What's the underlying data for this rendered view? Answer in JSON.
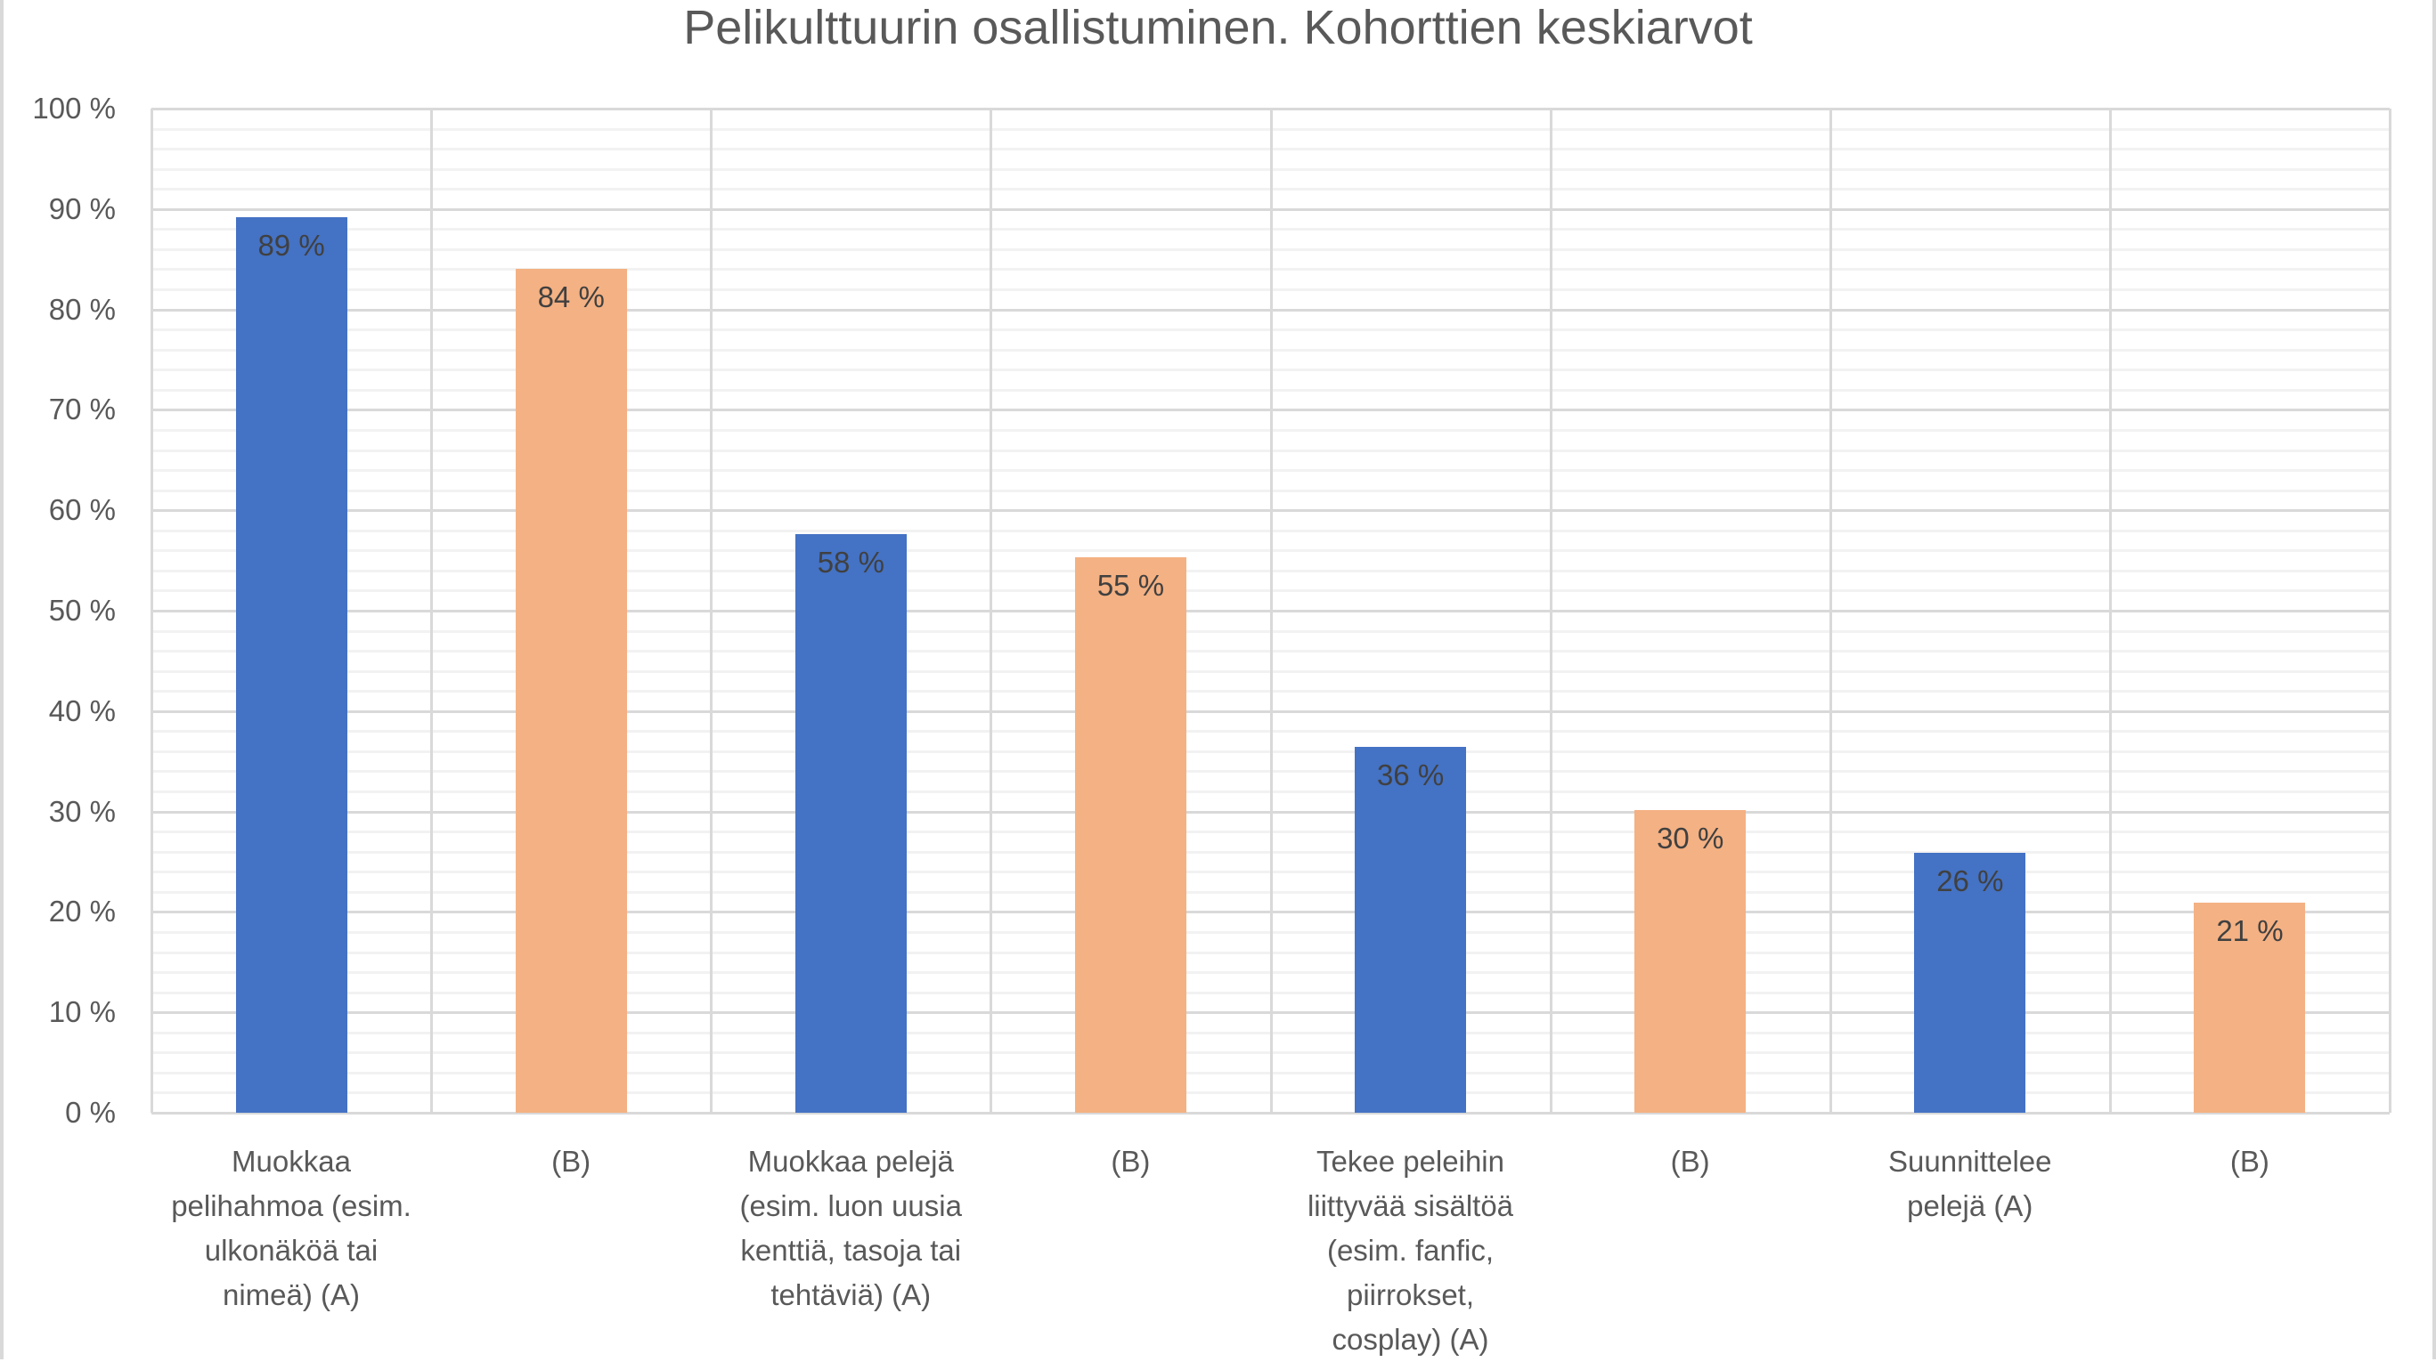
{
  "chart_data": {
    "type": "bar",
    "title": "Pelikulttuurin osallistuminen. Kohorttien keskiarvot",
    "xlabel": "",
    "ylabel": "",
    "ylim": [
      0,
      100
    ],
    "y_ticks": [
      "0 %",
      "10 %",
      "20 %",
      "30 %",
      "40 %",
      "50 %",
      "60 %",
      "70 %",
      "80 %",
      "90 %",
      "100 %"
    ],
    "grid": {
      "major": true,
      "minor_step": 2,
      "vertical_separators": true
    },
    "legend": null,
    "categories": [
      "Muokkaa pelihahmoa (esim. ulkonäköä tai nimeä) (A)",
      "(B)",
      "Muokkaa pelejä (esim. luon uusia kenttiä, tasoja tai tehtäviä) (A)",
      "(B)",
      "Tekee peleihin liittyvää sisältöä (esim. fanfic, piirrokset, cosplay) (A)",
      "(B)",
      "Suunnittelee pelejä (A)",
      "(B)"
    ],
    "category_lines": [
      [
        "Muokkaa",
        "pelihahmoa (esim.",
        "ulkonäköä tai",
        "nimeä) (A)"
      ],
      [
        "(B)"
      ],
      [
        "Muokkaa pelejä",
        "(esim. luon uusia",
        "kenttiä, tasoja tai",
        "tehtäviä) (A)"
      ],
      [
        "(B)"
      ],
      [
        "Tekee peleihin",
        "liittyvää sisältöä",
        "(esim. fanfic,",
        "piirrokset,",
        "cosplay) (A)"
      ],
      [
        "(B)"
      ],
      [
        "Suunnittelee",
        "pelejä (A)"
      ],
      [
        "(B)"
      ]
    ],
    "values": [
      89.2,
      84.0,
      57.6,
      55.3,
      36.4,
      30.1,
      25.9,
      20.9
    ],
    "data_labels": [
      "89 %",
      "84 %",
      "58 %",
      "55 %",
      "36 %",
      "30 %",
      "26 %",
      "21 %"
    ],
    "cohorts": [
      "A",
      "B",
      "A",
      "B",
      "A",
      "B",
      "A",
      "B"
    ],
    "colors": {
      "A": "#4472C4",
      "B": "#F4B183"
    }
  },
  "title": "Pelikulttuurin osallistuminen. Kohorttien keskiarvot"
}
